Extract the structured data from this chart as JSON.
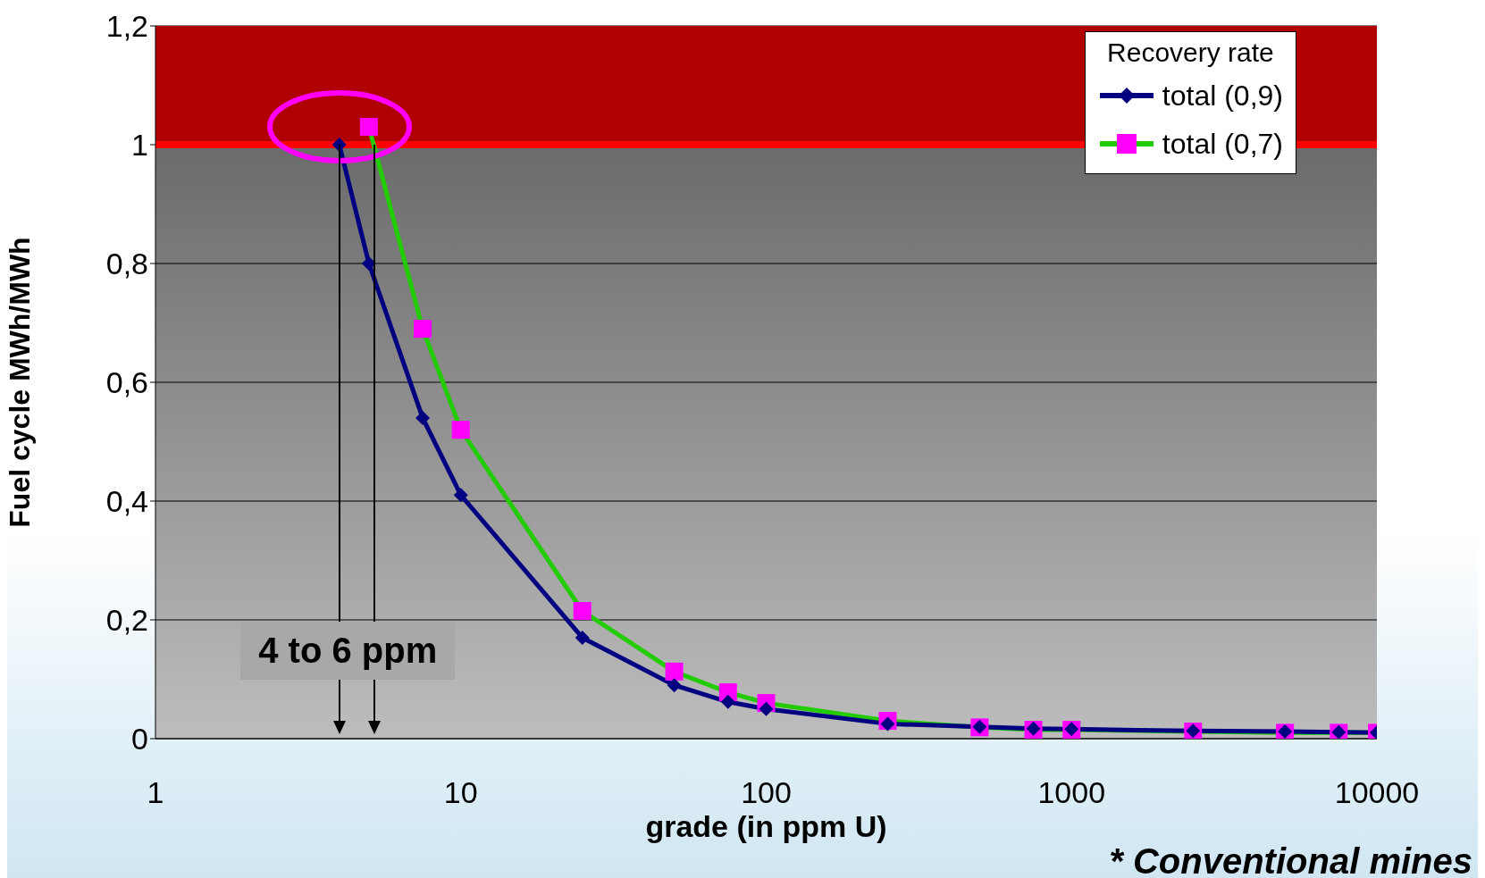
{
  "chart_data": {
    "type": "line",
    "xlabel": "grade (in ppm U)",
    "ylabel": "Fuel cycle MWh/MWh",
    "legend_title": "Recovery rate",
    "log": "x",
    "xlim": [
      1,
      10000
    ],
    "xticks": [
      1,
      10,
      100,
      1000,
      10000
    ],
    "ylim": [
      0,
      1.2
    ],
    "yticks": [
      {
        "value": 0,
        "label": "0"
      },
      {
        "value": 0.2,
        "label": "0,2"
      },
      {
        "value": 0.4,
        "label": "0,4"
      },
      {
        "value": 0.6,
        "label": "0,6"
      },
      {
        "value": 0.8,
        "label": "0,8"
      },
      {
        "value": 1,
        "label": "1"
      },
      {
        "value": 1.2,
        "label": "1,2"
      }
    ],
    "grid": "y",
    "legend": "top right",
    "series": [
      {
        "name": "total (0,9)",
        "color": "#000080",
        "marker": "diamond",
        "x": [
          4,
          5,
          7.5,
          10,
          25,
          50,
          75,
          100,
          250,
          500,
          750,
          1000,
          2500,
          5000,
          7500,
          10000
        ],
        "values": [
          1.0,
          0.8,
          0.54,
          0.41,
          0.17,
          0.09,
          0.062,
          0.05,
          0.025,
          0.02,
          0.017,
          0.016,
          0.013,
          0.012,
          0.011,
          0.01
        ]
      },
      {
        "name": "total (0,7)",
        "color": "#22cc00",
        "marker": "square",
        "x": [
          5,
          7.5,
          10,
          25,
          50,
          75,
          100,
          250,
          500,
          750,
          1000,
          2500,
          5000,
          7500,
          10000
        ],
        "values": [
          1.03,
          0.69,
          0.52,
          0.215,
          0.113,
          0.078,
          0.06,
          0.03,
          0.019,
          0.015,
          0.015,
          0.012,
          0.01,
          0.01,
          0.01
        ]
      }
    ],
    "bands": [
      {
        "axis": "y",
        "from": 1,
        "to": 1.2,
        "color": "#b00000"
      }
    ],
    "ref_lines": [
      {
        "axis": "y",
        "value": 1,
        "color": "#ff0000"
      },
      {
        "axis": "x",
        "value": 4,
        "color": "#000000"
      },
      {
        "axis": "x",
        "value": 5.2,
        "color": "#000000"
      }
    ],
    "annotations": [
      "4 to 6 ppm",
      "* Conventional mines"
    ]
  }
}
